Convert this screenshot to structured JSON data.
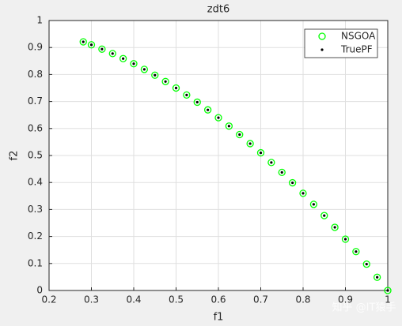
{
  "chart_data": {
    "type": "scatter",
    "title": "zdt6",
    "x_label": "f1",
    "y_label": "f2",
    "xlim": [
      0.2,
      1
    ],
    "ylim": [
      0,
      1
    ],
    "xticks": [
      0.2,
      0.3,
      0.4,
      0.5,
      0.6,
      0.7,
      0.8,
      0.9,
      1
    ],
    "yticks": [
      0,
      0.1,
      0.2,
      0.3,
      0.4,
      0.5,
      0.6,
      0.7,
      0.8,
      0.9,
      1
    ],
    "grid": true,
    "legend": "top-right",
    "watermark": "知乎 @IT猿手",
    "series": [
      {
        "name": "NSGOA",
        "color": "#00ff00",
        "marker": "circle",
        "x": [
          0.2808,
          0.3,
          0.325,
          0.35,
          0.375,
          0.4,
          0.425,
          0.45,
          0.475,
          0.5,
          0.525,
          0.55,
          0.575,
          0.6,
          0.625,
          0.65,
          0.675,
          0.7,
          0.725,
          0.75,
          0.775,
          0.8,
          0.825,
          0.85,
          0.875,
          0.9,
          0.925,
          0.95,
          0.975,
          1
        ],
        "values": [
          0.921,
          0.91,
          0.894,
          0.8775,
          0.859,
          0.84,
          0.819,
          0.7975,
          0.774,
          0.75,
          0.724,
          0.6975,
          0.669,
          0.64,
          0.609,
          0.5775,
          0.544,
          0.51,
          0.474,
          0.4375,
          0.399,
          0.36,
          0.319,
          0.2775,
          0.234,
          0.19,
          0.144,
          0.0975,
          0.049,
          0
        ]
      },
      {
        "name": "TruePF",
        "color": "#000000",
        "marker": "dot",
        "x": [
          0.2808,
          0.3,
          0.325,
          0.35,
          0.375,
          0.4,
          0.425,
          0.45,
          0.475,
          0.5,
          0.525,
          0.55,
          0.575,
          0.6,
          0.625,
          0.65,
          0.675,
          0.7,
          0.725,
          0.75,
          0.775,
          0.8,
          0.825,
          0.85,
          0.875,
          0.9,
          0.925,
          0.95,
          0.975,
          1
        ],
        "values": [
          0.921,
          0.91,
          0.894,
          0.8775,
          0.859,
          0.84,
          0.819,
          0.7975,
          0.774,
          0.75,
          0.724,
          0.6975,
          0.669,
          0.64,
          0.609,
          0.5775,
          0.544,
          0.51,
          0.474,
          0.4375,
          0.399,
          0.36,
          0.319,
          0.2775,
          0.234,
          0.19,
          0.144,
          0.0975,
          0.049,
          0
        ]
      }
    ]
  }
}
